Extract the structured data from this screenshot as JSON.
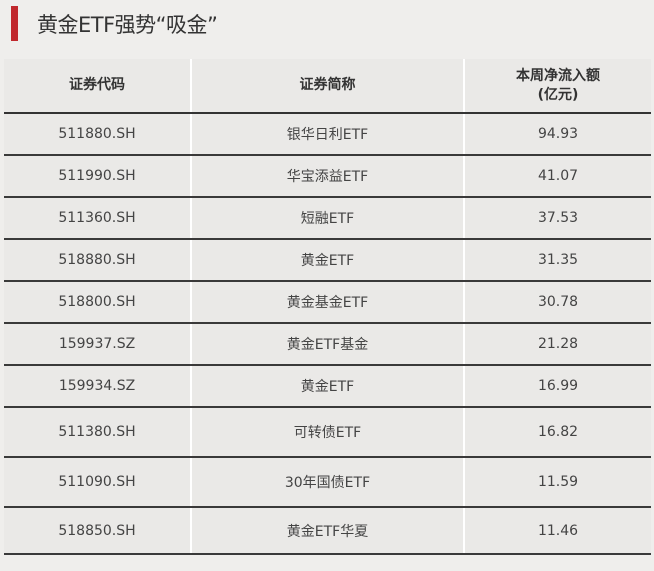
{
  "title": "黄金ETF强势“吸金”",
  "accent_color": "#c0282d",
  "table": {
    "headers": [
      "证券代码",
      "证券简称",
      "本周净流入额",
      "(亿元)"
    ],
    "rows": [
      [
        "511880.SH",
        "银华日利ETF",
        "94.93"
      ],
      [
        "511990.SH",
        "华宝添益ETF",
        "41.07"
      ],
      [
        "511360.SH",
        "短融ETF",
        "37.53"
      ],
      [
        "518880.SH",
        "黄金ETF",
        "31.35"
      ],
      [
        "518800.SH",
        "黄金基金ETF",
        "30.78"
      ],
      [
        "159937.SZ",
        "黄金ETF基金",
        "21.28"
      ],
      [
        "159934.SZ",
        "黄金ETF",
        "16.99"
      ],
      [
        "511380.SH",
        "可转债ETF",
        "16.82"
      ],
      [
        "511090.SH",
        "30年国债ETF",
        "11.59"
      ],
      [
        "518850.SH",
        "黄金ETF华夏",
        "11.46"
      ]
    ]
  }
}
